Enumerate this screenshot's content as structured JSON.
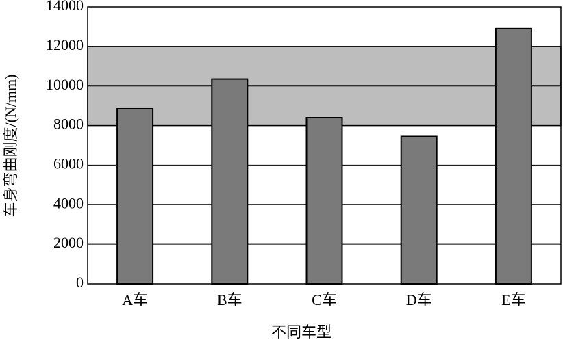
{
  "chart_data": {
    "type": "bar",
    "categories": [
      "A车",
      "B车",
      "C车",
      "D车",
      "E车"
    ],
    "values": [
      8850,
      10350,
      8400,
      7450,
      12900
    ],
    "color": "#7a7a7a",
    "x_label": "不同车型",
    "y_label": "车身弯曲刚度/(N/mm)",
    "ylim": [
      0,
      14000
    ],
    "yticks": [
      0,
      2000,
      4000,
      6000,
      8000,
      10000,
      12000,
      14000
    ],
    "grid": true,
    "band": [
      8000,
      12000
    ],
    "band_color": "#bdbdbd"
  }
}
